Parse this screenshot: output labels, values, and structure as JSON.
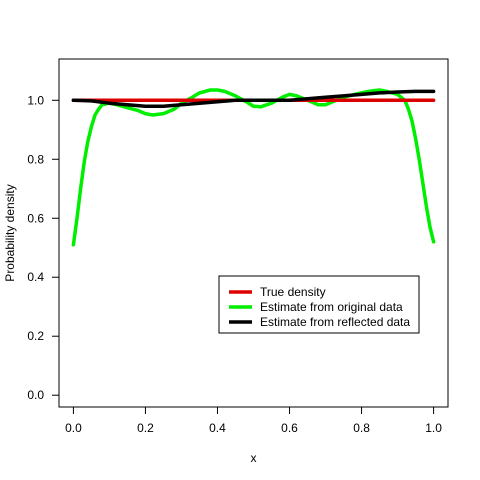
{
  "chart_data": {
    "type": "line",
    "title": "",
    "xlabel": "x",
    "ylabel": "Probability density",
    "xlim": [
      -0.04,
      1.04
    ],
    "ylim": [
      -0.04,
      1.14
    ],
    "x_ticks": [
      0.0,
      0.2,
      0.4,
      0.6,
      0.8,
      1.0
    ],
    "x_tick_labels": [
      "0.0",
      "0.2",
      "0.4",
      "0.6",
      "0.8",
      "1.0"
    ],
    "y_ticks": [
      0.0,
      0.2,
      0.4,
      0.6,
      0.8,
      1.0
    ],
    "y_tick_labels": [
      "0.0",
      "0.2",
      "0.4",
      "0.6",
      "0.8",
      "1.0"
    ],
    "grid": false,
    "legend_position": "lower-right",
    "series": [
      {
        "name": "True density",
        "color": "#dd0000",
        "x": [
          0.0,
          1.0
        ],
        "y": [
          1.0,
          1.0
        ]
      },
      {
        "name": "Estimate from original data",
        "color": "#00ee00",
        "x": [
          0.0,
          0.01,
          0.02,
          0.03,
          0.04,
          0.05,
          0.06,
          0.07,
          0.08,
          0.1,
          0.12,
          0.15,
          0.18,
          0.2,
          0.22,
          0.25,
          0.28,
          0.3,
          0.33,
          0.35,
          0.38,
          0.4,
          0.42,
          0.45,
          0.48,
          0.5,
          0.52,
          0.55,
          0.58,
          0.6,
          0.62,
          0.65,
          0.68,
          0.7,
          0.72,
          0.75,
          0.78,
          0.8,
          0.82,
          0.85,
          0.87,
          0.9,
          0.92,
          0.93,
          0.94,
          0.95,
          0.96,
          0.97,
          0.98,
          0.99,
          1.0
        ],
        "y": [
          0.51,
          0.6,
          0.7,
          0.79,
          0.86,
          0.91,
          0.95,
          0.97,
          0.985,
          0.99,
          0.985,
          0.975,
          0.965,
          0.955,
          0.95,
          0.955,
          0.97,
          0.99,
          1.01,
          1.025,
          1.035,
          1.035,
          1.03,
          1.015,
          0.995,
          0.98,
          0.978,
          0.99,
          1.01,
          1.02,
          1.015,
          1.0,
          0.985,
          0.985,
          0.995,
          1.01,
          1.02,
          1.025,
          1.03,
          1.035,
          1.03,
          1.02,
          1.0,
          0.97,
          0.93,
          0.87,
          0.8,
          0.72,
          0.64,
          0.57,
          0.52
        ]
      },
      {
        "name": "Estimate from reflected data",
        "color": "#000000",
        "x": [
          0.0,
          0.05,
          0.1,
          0.15,
          0.2,
          0.25,
          0.3,
          0.35,
          0.4,
          0.45,
          0.5,
          0.55,
          0.6,
          0.65,
          0.7,
          0.75,
          0.8,
          0.85,
          0.9,
          0.95,
          1.0
        ],
        "y": [
          1.0,
          0.998,
          0.99,
          0.985,
          0.98,
          0.98,
          0.985,
          0.99,
          0.995,
          1.0,
          1.0,
          1.0,
          1.0,
          1.005,
          1.01,
          1.015,
          1.02,
          1.025,
          1.028,
          1.03,
          1.03
        ]
      }
    ]
  }
}
